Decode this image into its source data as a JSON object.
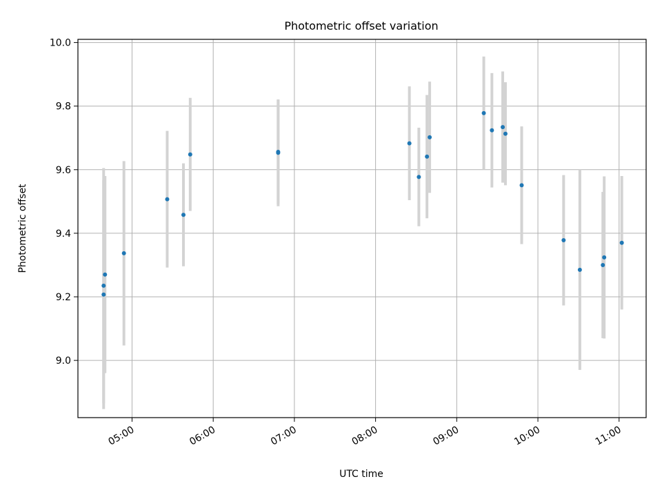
{
  "chart_data": {
    "type": "scatter",
    "title": "Photometric offset variation",
    "xlabel": "UTC time",
    "ylabel": "Photometric offset",
    "grid": true,
    "xlim": [
      "04:20",
      "11:20"
    ],
    "ylim": [
      8.82,
      10.01
    ],
    "x_ticks": [
      "05:00",
      "06:00",
      "07:00",
      "08:00",
      "09:00",
      "10:00",
      "11:00"
    ],
    "y_ticks": [
      "9.0",
      "9.2",
      "9.4",
      "9.6",
      "9.8",
      "10.0"
    ],
    "colors": {
      "points": "#1f77b4",
      "errorbars": "#d3d3d3",
      "grid": "#b0b0b0"
    },
    "series": [
      {
        "points": [
          {
            "x": "04:39",
            "y": 9.207,
            "err": 0.36
          },
          {
            "x": "04:39",
            "y": 9.235,
            "err": 0.37
          },
          {
            "x": "04:40",
            "y": 9.27,
            "err": 0.31
          },
          {
            "x": "04:54",
            "y": 9.337,
            "err": 0.29
          },
          {
            "x": "05:26",
            "y": 9.507,
            "err": 0.215
          },
          {
            "x": "05:38",
            "y": 9.458,
            "err": 0.162
          },
          {
            "x": "05:43",
            "y": 9.648,
            "err": 0.178
          },
          {
            "x": "06:48",
            "y": 9.653,
            "err": 0.168
          },
          {
            "x": "06:48",
            "y": 9.656,
            "err": 0.163
          },
          {
            "x": "08:25",
            "y": 9.683,
            "err": 0.179
          },
          {
            "x": "08:32",
            "y": 9.577,
            "err": 0.155
          },
          {
            "x": "08:38",
            "y": 9.641,
            "err": 0.194
          },
          {
            "x": "08:40",
            "y": 9.702,
            "err": 0.175
          },
          {
            "x": "09:20",
            "y": 9.778,
            "err": 0.178
          },
          {
            "x": "09:26",
            "y": 9.724,
            "err": 0.18
          },
          {
            "x": "09:34",
            "y": 9.734,
            "err": 0.175
          },
          {
            "x": "09:36",
            "y": 9.713,
            "err": 0.162
          },
          {
            "x": "09:48",
            "y": 9.551,
            "err": 0.185
          },
          {
            "x": "10:19",
            "y": 9.378,
            "err": 0.205
          },
          {
            "x": "10:31",
            "y": 9.285,
            "err": 0.315
          },
          {
            "x": "10:48",
            "y": 9.3,
            "err": 0.23
          },
          {
            "x": "10:49",
            "y": 9.324,
            "err": 0.255
          },
          {
            "x": "11:02",
            "y": 9.37,
            "err": 0.21
          }
        ]
      }
    ]
  }
}
